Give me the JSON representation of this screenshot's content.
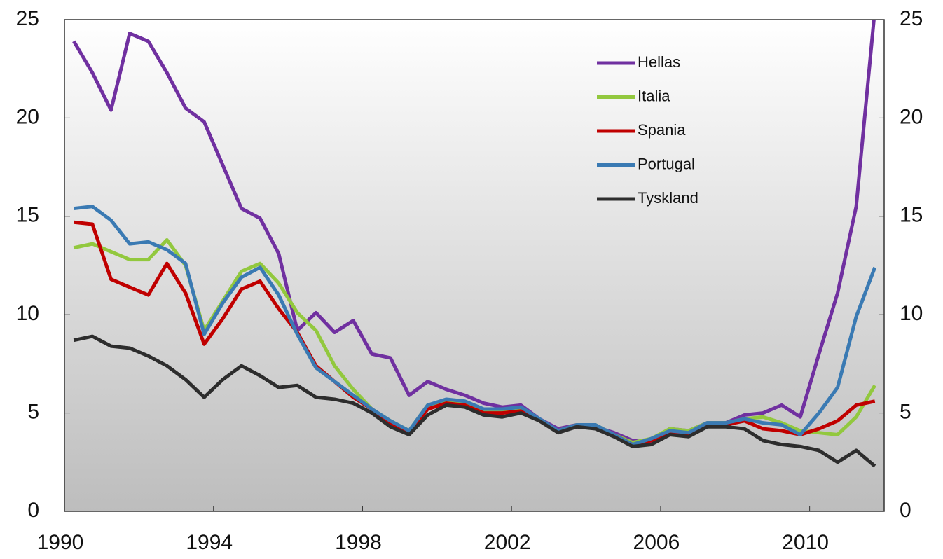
{
  "chart_data": {
    "type": "line",
    "x": [
      1990.25,
      1990.75,
      1991.25,
      1991.75,
      1992.25,
      1992.75,
      1993.25,
      1993.75,
      1994.25,
      1994.75,
      1995.25,
      1995.75,
      1996.25,
      1996.75,
      1997.25,
      1997.75,
      1998.25,
      1998.75,
      1999.25,
      1999.75,
      2000.25,
      2000.75,
      2001.25,
      2001.75,
      2002.25,
      2002.75,
      2003.25,
      2003.75,
      2004.25,
      2004.75,
      2005.25,
      2005.75,
      2006.25,
      2006.75,
      2007.25,
      2007.75,
      2008.25,
      2008.75,
      2009.25,
      2009.75,
      2010.25,
      2010.75,
      2011.25,
      2011.75
    ],
    "series": [
      {
        "name": "Hellas",
        "color": "#7030a0",
        "values": [
          23.9,
          22.3,
          20.4,
          24.3,
          23.9,
          22.3,
          20.5,
          19.8,
          17.6,
          15.4,
          14.9,
          13.1,
          9.2,
          10.1,
          9.1,
          9.7,
          8.0,
          7.8,
          5.9,
          6.6,
          6.2,
          5.9,
          5.5,
          5.3,
          5.4,
          4.7,
          4.2,
          4.4,
          4.3,
          4.0,
          3.6,
          3.5,
          4.2,
          4.1,
          4.5,
          4.5,
          4.9,
          5.0,
          5.4,
          4.8,
          8.0,
          11.1,
          15.5,
          25.5
        ]
      },
      {
        "name": "Italia",
        "color": "#92c83e",
        "values": [
          13.4,
          13.6,
          13.2,
          12.8,
          12.8,
          13.8,
          12.5,
          9.2,
          10.7,
          12.2,
          12.6,
          11.6,
          10.1,
          9.2,
          7.4,
          6.2,
          5.2,
          4.6,
          4.1,
          5.4,
          5.6,
          5.5,
          5.1,
          5.1,
          5.2,
          4.6,
          4.1,
          4.4,
          4.4,
          3.9,
          3.5,
          3.7,
          4.2,
          4.1,
          4.5,
          4.5,
          4.7,
          4.8,
          4.5,
          4.1,
          4.0,
          3.9,
          4.8,
          6.4
        ]
      },
      {
        "name": "Spania",
        "color": "#c00000",
        "values": [
          14.7,
          14.6,
          11.8,
          11.4,
          11.0,
          12.6,
          11.1,
          8.5,
          9.8,
          11.3,
          11.7,
          10.3,
          9.1,
          7.4,
          6.6,
          5.8,
          5.2,
          4.5,
          4.0,
          5.2,
          5.5,
          5.4,
          5.0,
          5.0,
          5.1,
          4.6,
          4.1,
          4.3,
          4.3,
          3.9,
          3.4,
          3.6,
          4.0,
          3.9,
          4.4,
          4.4,
          4.6,
          4.2,
          4.1,
          3.9,
          4.2,
          4.6,
          5.4,
          5.6
        ]
      },
      {
        "name": "Portugal",
        "color": "#3a7ab3",
        "values": [
          15.4,
          15.5,
          14.8,
          13.6,
          13.7,
          13.3,
          12.6,
          9.0,
          10.6,
          11.9,
          12.4,
          11.0,
          9.0,
          7.3,
          6.6,
          5.9,
          5.2,
          4.6,
          4.1,
          5.4,
          5.7,
          5.6,
          5.2,
          5.2,
          5.3,
          4.7,
          4.1,
          4.4,
          4.4,
          3.9,
          3.4,
          3.7,
          4.1,
          4.0,
          4.5,
          4.5,
          4.7,
          4.5,
          4.4,
          3.9,
          5.0,
          6.3,
          9.9,
          12.4
        ]
      },
      {
        "name": "Tyskland",
        "color": "#2d2d2d",
        "values": [
          8.7,
          8.9,
          8.4,
          8.3,
          7.9,
          7.4,
          6.7,
          5.8,
          6.7,
          7.4,
          6.9,
          6.3,
          6.4,
          5.8,
          5.7,
          5.5,
          5.0,
          4.3,
          3.9,
          4.9,
          5.4,
          5.3,
          4.9,
          4.8,
          5.0,
          4.6,
          4.0,
          4.3,
          4.2,
          3.8,
          3.3,
          3.4,
          3.9,
          3.8,
          4.3,
          4.3,
          4.2,
          3.6,
          3.4,
          3.3,
          3.1,
          2.5,
          3.1,
          2.3
        ]
      }
    ],
    "xlim": [
      1990,
      2012
    ],
    "xticks": [
      1990,
      1994,
      1998,
      2002,
      2006,
      2010
    ],
    "ylim": [
      0,
      25
    ],
    "yticks": [
      0,
      5,
      10,
      15,
      20,
      25
    ],
    "y2lim": [
      0,
      25
    ],
    "y2ticks": [
      0,
      5,
      10,
      15,
      20,
      25
    ],
    "legend": "top-right"
  }
}
